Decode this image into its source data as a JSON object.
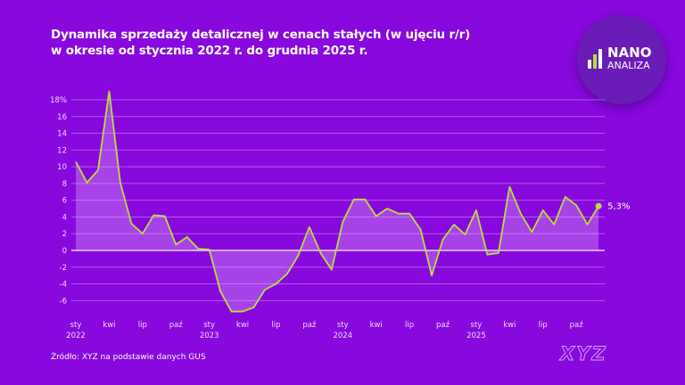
{
  "title_lines": [
    "Dynamika sprzedaży detalicznej w cenach stałych (w ujęciu r/r)",
    "w okresie od stycznia 2022 r. do grudnia 2025 r."
  ],
  "logo": {
    "line1": "NANO",
    "line2": "ANALIZA"
  },
  "source": "Źródło: XYZ na podstawie danych GUS",
  "brand": "XYZ",
  "colors": {
    "background": "#8808dd",
    "line": "#b8e03a",
    "fill": "rgba(220,170,255,0.35)",
    "grid": "rgba(255,255,255,0.35)"
  },
  "chart_data": {
    "type": "area",
    "title": "Dynamika sprzedaży detalicznej w cenach stałych (w ujęciu r/r) w okresie od stycznia 2022 r. do grudnia 2025 r.",
    "ylabel": "%",
    "ylim": [
      -8,
      19
    ],
    "yticks": [
      -6,
      -4,
      -2,
      0,
      2,
      4,
      6,
      8,
      10,
      12,
      14,
      16,
      18
    ],
    "ytick_labels": [
      "-6",
      "-4",
      "-2",
      "0",
      "2",
      "4",
      "6",
      "8",
      "10",
      "12",
      "14",
      "16",
      "18%"
    ],
    "xtick_labels": [
      {
        "index": 0,
        "label": "sty",
        "year": "2022"
      },
      {
        "index": 3,
        "label": "kwi"
      },
      {
        "index": 6,
        "label": "lip"
      },
      {
        "index": 9,
        "label": "paź"
      },
      {
        "index": 12,
        "label": "sty",
        "year": "2023"
      },
      {
        "index": 15,
        "label": "kwi"
      },
      {
        "index": 18,
        "label": "lip"
      },
      {
        "index": 21,
        "label": "paź"
      },
      {
        "index": 24,
        "label": "sty",
        "year": "2024"
      },
      {
        "index": 27,
        "label": "kwi"
      },
      {
        "index": 30,
        "label": "lip"
      },
      {
        "index": 33,
        "label": "paź"
      },
      {
        "index": 36,
        "label": "sty",
        "year": "2025"
      },
      {
        "index": 39,
        "label": "kwi"
      },
      {
        "index": 42,
        "label": "lip"
      },
      {
        "index": 45,
        "label": "paź"
      }
    ],
    "values": [
      10.6,
      8.1,
      9.6,
      19.0,
      8.1,
      3.2,
      2.0,
      4.2,
      4.1,
      0.7,
      1.6,
      0.2,
      0.1,
      -4.9,
      -7.3,
      -7.3,
      -6.8,
      -4.7,
      -4.0,
      -2.8,
      -0.6,
      2.8,
      -0.3,
      -2.3,
      3.4,
      6.1,
      6.1,
      4.1,
      5.0,
      4.4,
      4.4,
      2.5,
      -3.0,
      1.3,
      3.1,
      1.9,
      4.8,
      -0.5,
      -0.3,
      7.6,
      4.4,
      2.2,
      4.8,
      3.1,
      6.4,
      5.4,
      3.1,
      5.3
    ],
    "last_value_label": "5,3%",
    "grid": true
  }
}
